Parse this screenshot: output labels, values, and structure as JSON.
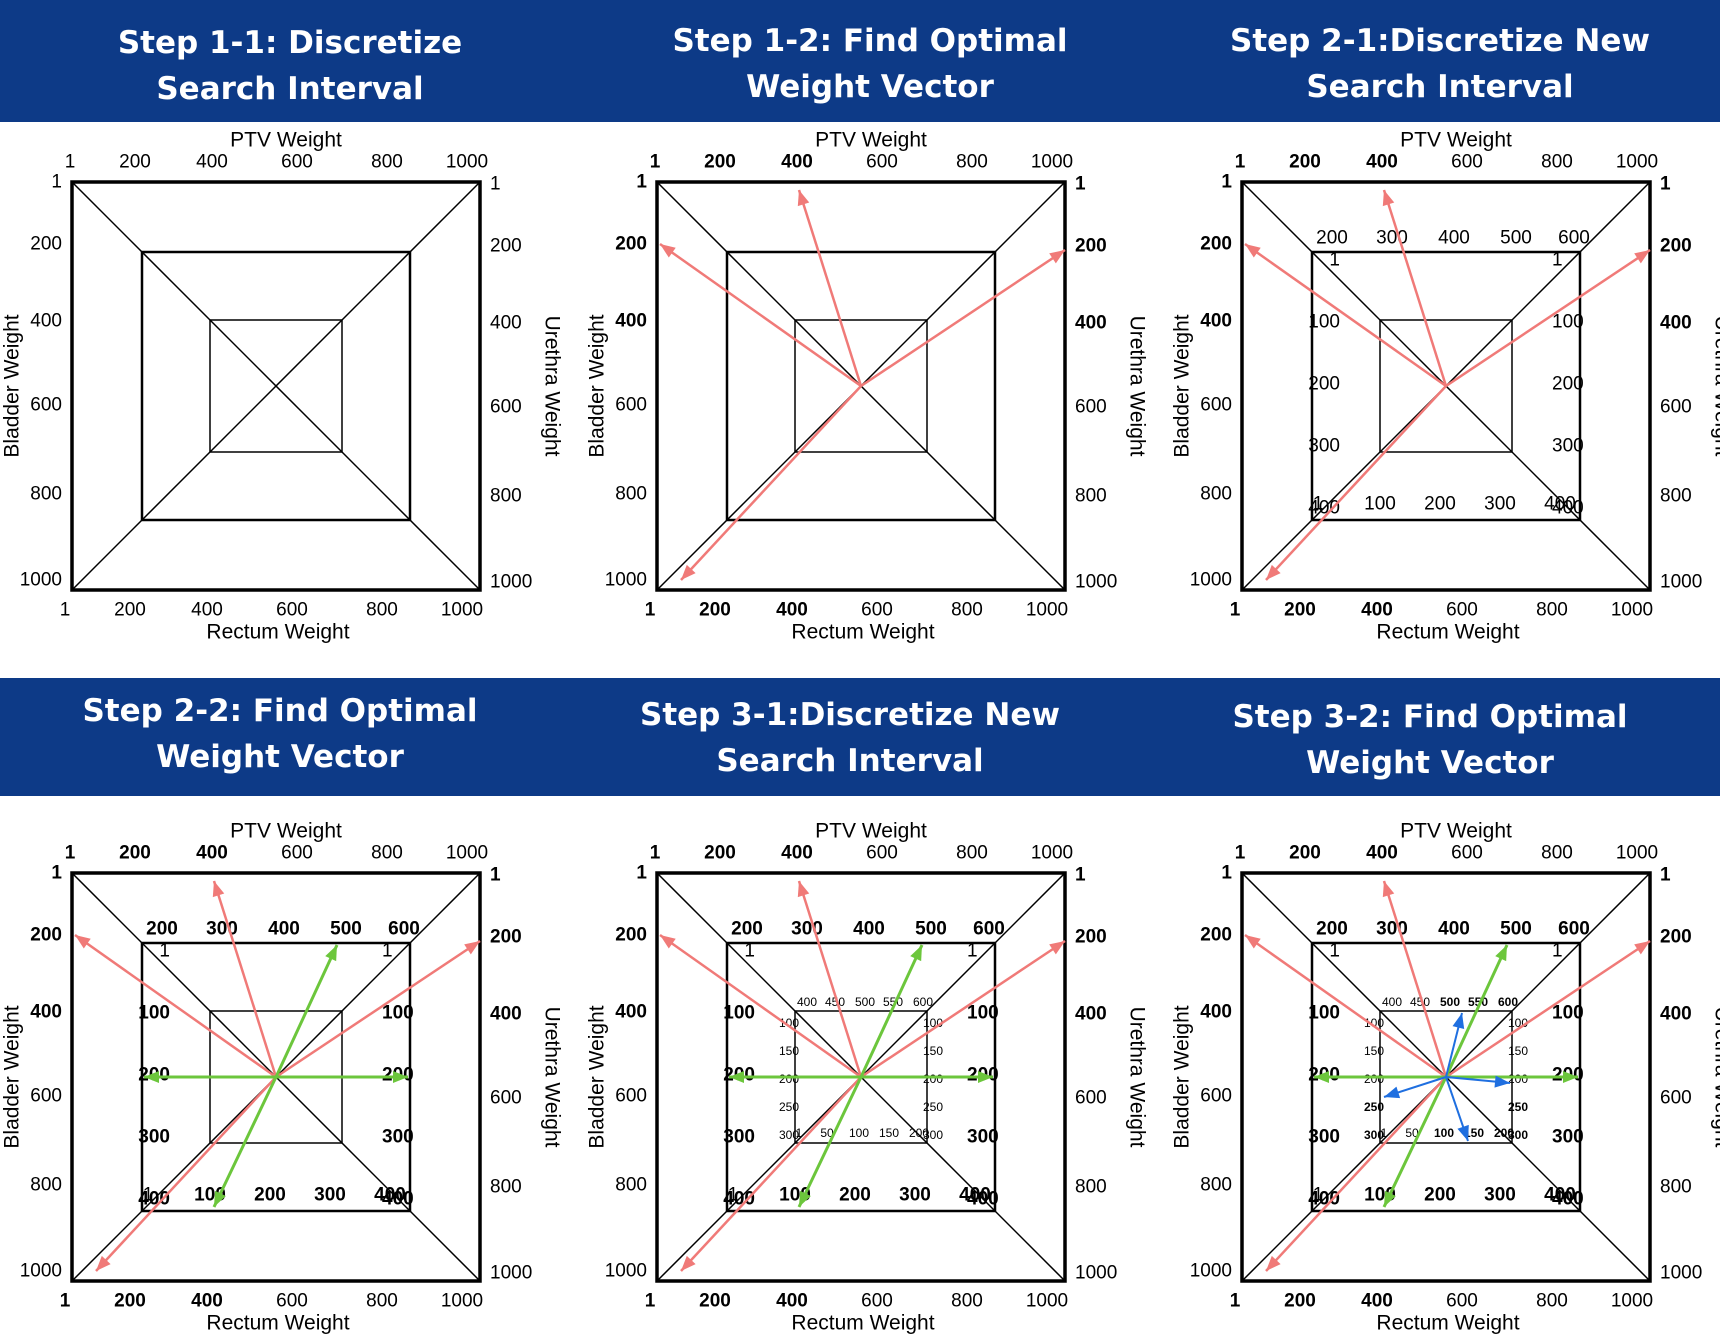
{
  "colors": {
    "banner": "#0d3a87",
    "red_arrow": "#f07a78",
    "green_arrow": "#6cc63c",
    "blue_arrow": "#1f6fe0"
  },
  "panels": [
    {
      "title": "Step 1-1: Discretize\nSearch Interval",
      "labels": {
        "top": "PTV Weight",
        "bottom": "Rectum Weight",
        "left": "Bladder Weight",
        "right": "Urethra Weight"
      },
      "outer_ticks": [
        "1",
        "200",
        "400",
        "600",
        "800",
        "1000"
      ],
      "outer_bold": [],
      "middle_ticks": null,
      "inner_ticks": null,
      "arrows": []
    },
    {
      "title": "Step 1-2: Find Optimal\nWeight Vector",
      "labels": {
        "top": "PTV Weight",
        "bottom": "Rectum Weight",
        "left": "Bladder Weight",
        "right": "Urethra Weight"
      },
      "outer_ticks": [
        "1",
        "200",
        "400",
        "600",
        "800",
        "1000"
      ],
      "outer_bold": [
        "1",
        "200",
        "400"
      ],
      "middle_ticks": null,
      "inner_ticks": null,
      "arrows": [
        "red"
      ]
    },
    {
      "title": "Step 2-1:Discretize New\nSearch Interval",
      "labels": {
        "top": "PTV Weight",
        "bottom": "Rectum Weight",
        "left": "Bladder Weight",
        "right": "Urethra Weight"
      },
      "outer_ticks": [
        "1",
        "200",
        "400",
        "600",
        "800",
        "1000"
      ],
      "outer_bold": [
        "1",
        "200",
        "400"
      ],
      "middle_ticks": {
        "top": [
          "200",
          "300",
          "400",
          "500",
          "600"
        ],
        "side": [
          "1",
          "100",
          "200",
          "300",
          "400"
        ],
        "bold": []
      },
      "inner_ticks": null,
      "arrows": [
        "red"
      ]
    },
    {
      "title": "Step 2-2: Find Optimal\nWeight Vector",
      "labels": {
        "top": "PTV Weight",
        "bottom": "Rectum Weight",
        "left": "Bladder Weight",
        "right": "Urethra Weight"
      },
      "outer_ticks": [
        "1",
        "200",
        "400",
        "600",
        "800",
        "1000"
      ],
      "outer_bold": [
        "1",
        "200",
        "400"
      ],
      "middle_ticks": {
        "top": [
          "200",
          "300",
          "400",
          "500",
          "600"
        ],
        "side": [
          "1",
          "100",
          "200",
          "300",
          "400"
        ],
        "bold": [
          "400",
          "500",
          "600",
          "100",
          "200",
          "300"
        ]
      },
      "inner_ticks": null,
      "arrows": [
        "red",
        "green"
      ]
    },
    {
      "title": "Step 3-1:Discretize New\nSearch Interval",
      "labels": {
        "top": "PTV Weight",
        "bottom": "Rectum Weight",
        "left": "Bladder Weight",
        "right": "Urethra Weight"
      },
      "outer_ticks": [
        "1",
        "200",
        "400",
        "600",
        "800",
        "1000"
      ],
      "outer_bold": [
        "1",
        "200",
        "400"
      ],
      "middle_ticks": {
        "top": [
          "200",
          "300",
          "400",
          "500",
          "600"
        ],
        "side": [
          "1",
          "100",
          "200",
          "300",
          "400"
        ],
        "bold": [
          "400",
          "500",
          "600",
          "100",
          "200",
          "300"
        ]
      },
      "inner_ticks": {
        "top": [
          "400",
          "450",
          "500",
          "550",
          "600"
        ],
        "side": [
          "100",
          "150",
          "200",
          "250",
          "300"
        ],
        "bottom": [
          "1",
          "50",
          "100",
          "150",
          "200"
        ],
        "bold": []
      },
      "arrows": [
        "red",
        "green"
      ]
    },
    {
      "title": "Step 3-2: Find Optimal\nWeight Vector",
      "labels": {
        "top": "PTV Weight",
        "bottom": "Rectum Weight",
        "left": "Bladder Weight",
        "right": "Urethra Weight"
      },
      "outer_ticks": [
        "1",
        "200",
        "400",
        "600",
        "800",
        "1000"
      ],
      "outer_bold": [
        "1",
        "200",
        "400"
      ],
      "middle_ticks": {
        "top": [
          "200",
          "300",
          "400",
          "500",
          "600"
        ],
        "side": [
          "1",
          "100",
          "200",
          "300",
          "400"
        ],
        "bold": [
          "400",
          "500",
          "600",
          "100",
          "200",
          "300"
        ]
      },
      "inner_ticks": {
        "top": [
          "400",
          "450",
          "500",
          "550",
          "600"
        ],
        "side": [
          "100",
          "150",
          "200",
          "250",
          "300"
        ],
        "bottom": [
          "1",
          "50",
          "100",
          "150",
          "200"
        ],
        "bold": [
          "500",
          "550",
          "600",
          "250",
          "300",
          "100",
          "150",
          "200"
        ]
      },
      "arrows": [
        "red",
        "green",
        "blue"
      ]
    }
  ]
}
